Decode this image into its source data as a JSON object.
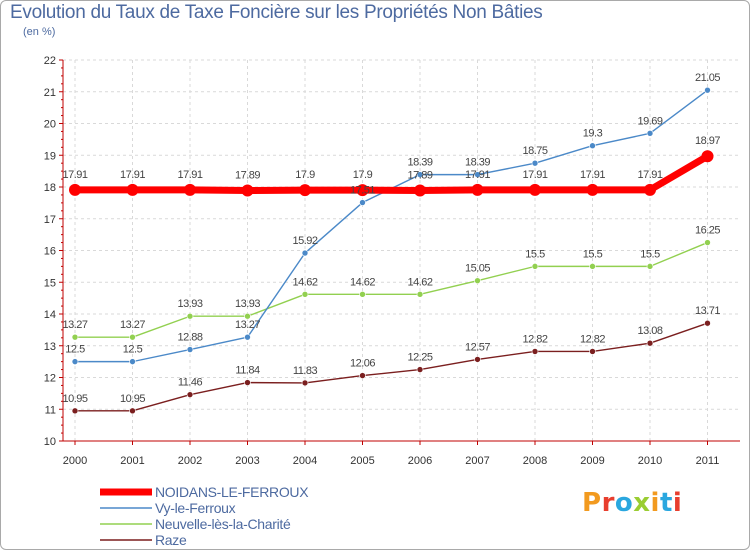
{
  "title": "Evolution du Taux de Taxe Foncière sur les Propriétés Non Bâties",
  "subtitle": "(en %)",
  "brand": {
    "text": "Proxiti",
    "letters": [
      "P",
      "r",
      "o",
      "x",
      "i",
      "t",
      "i"
    ],
    "colors": [
      "#f29a1f",
      "#e83e2e",
      "#2aa7df",
      "#9acd32",
      "#f29a1f",
      "#2aa7df",
      "#e83e2e"
    ]
  },
  "chart_data": {
    "type": "line",
    "x": [
      "2000",
      "2001",
      "2002",
      "2003",
      "2004",
      "2005",
      "2006",
      "2007",
      "2008",
      "2009",
      "2010",
      "2011"
    ],
    "ylim": [
      10,
      22
    ],
    "yticks": [
      "10",
      "11",
      "12",
      "13",
      "14",
      "15",
      "16",
      "17",
      "18",
      "19",
      "20",
      "21",
      "22"
    ],
    "grid": true,
    "legend_position": "bottom-left",
    "series": [
      {
        "name": "NOIDANS-LE-FERROUX",
        "color": "#ff0000",
        "values": [
          17.91,
          17.91,
          17.91,
          17.89,
          17.9,
          17.9,
          17.89,
          17.91,
          17.91,
          17.91,
          17.91,
          18.97
        ],
        "labels": [
          "17.91",
          "17.91",
          "17.91",
          "17.89",
          "17.9",
          "17.9",
          "17.89",
          "17.91",
          "17.91",
          "17.91",
          "17.91",
          "18.97"
        ]
      },
      {
        "name": "Vy-le-Ferroux",
        "color": "#4b89c8",
        "values": [
          12.5,
          12.5,
          12.88,
          13.27,
          15.92,
          17.51,
          18.39,
          18.39,
          18.75,
          19.3,
          19.69,
          21.05
        ],
        "labels": [
          "12.5",
          "12.5",
          "12.88",
          "13.27",
          "15.92",
          "17.51",
          "18.39",
          "18.39",
          "18.75",
          "19.3",
          "19.69",
          "21.05"
        ]
      },
      {
        "name": "Neuvelle-lès-la-Charité",
        "color": "#92d050",
        "values": [
          13.27,
          13.27,
          13.93,
          13.93,
          14.62,
          14.62,
          14.62,
          15.05,
          15.5,
          15.5,
          15.5,
          16.25
        ],
        "labels": [
          "13.27",
          "13.27",
          "13.93",
          "13.93",
          "14.62",
          "14.62",
          "14.62",
          "15.05",
          "15.5",
          "15.5",
          "15.5",
          "16.25"
        ]
      },
      {
        "name": "Raze",
        "color": "#7b1f1f",
        "values": [
          10.95,
          10.95,
          11.46,
          11.84,
          11.83,
          12.06,
          12.25,
          12.57,
          12.82,
          12.82,
          13.08,
          13.71
        ],
        "labels": [
          "10.95",
          "10.95",
          "11.46",
          "11.84",
          "11.83",
          "12.06",
          "12.25",
          "12.57",
          "12.82",
          "12.82",
          "13.08",
          "13.71"
        ]
      }
    ]
  }
}
